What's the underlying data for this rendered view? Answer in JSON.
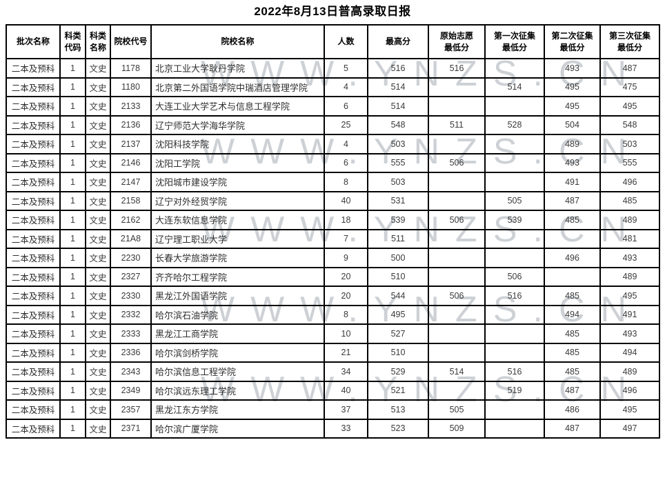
{
  "title": "2022年8月13日普高录取日报",
  "watermark": {
    "text": "WWW.YNZS.CN",
    "color": "#cdd1d5",
    "count": 6
  },
  "table": {
    "columns": [
      {
        "key": "batch",
        "label": "批次名称"
      },
      {
        "key": "subject-code",
        "label": "科类\n代码"
      },
      {
        "key": "subject-name",
        "label": "科类\n名称"
      },
      {
        "key": "inst-code",
        "label": "院校代号"
      },
      {
        "key": "inst-name",
        "label": "院校名称"
      },
      {
        "key": "count",
        "label": "人数"
      },
      {
        "key": "max-score",
        "label": "最高分"
      },
      {
        "key": "orig-min",
        "label": "原始志愿\n最低分"
      },
      {
        "key": "first-min",
        "label": "第一次征集\n最低分"
      },
      {
        "key": "second-min",
        "label": "第二次征集\n最低分"
      },
      {
        "key": "third-min",
        "label": "第三次征集\n最低分"
      }
    ],
    "rows": [
      [
        "二本及预科",
        "1",
        "文史",
        "1178",
        "北京工业大学耿丹学院",
        "5",
        "516",
        "516",
        "",
        "493",
        "487"
      ],
      [
        "二本及预科",
        "1",
        "文史",
        "1180",
        "北京第二外国语学院中瑞酒店管理学院",
        "4",
        "514",
        "",
        "514",
        "495",
        "475"
      ],
      [
        "二本及预科",
        "1",
        "文史",
        "2133",
        "大连工业大学艺术与信息工程学院",
        "6",
        "514",
        "",
        "",
        "495",
        "495"
      ],
      [
        "二本及预科",
        "1",
        "文史",
        "2136",
        "辽宁师范大学海华学院",
        "25",
        "548",
        "511",
        "528",
        "504",
        "548"
      ],
      [
        "二本及预科",
        "1",
        "文史",
        "2137",
        "沈阳科技学院",
        "4",
        "503",
        "",
        "",
        "489",
        "503"
      ],
      [
        "二本及预科",
        "1",
        "文史",
        "2146",
        "沈阳工学院",
        "6",
        "555",
        "506",
        "",
        "493",
        "555"
      ],
      [
        "二本及预科",
        "1",
        "文史",
        "2147",
        "沈阳城市建设学院",
        "8",
        "503",
        "",
        "",
        "491",
        "496"
      ],
      [
        "二本及预科",
        "1",
        "文史",
        "2158",
        "辽宁对外经贸学院",
        "40",
        "531",
        "",
        "505",
        "487",
        "485"
      ],
      [
        "二本及预科",
        "1",
        "文史",
        "2162",
        "大连东软信息学院",
        "18",
        "539",
        "506",
        "539",
        "485",
        "489"
      ],
      [
        "二本及预科",
        "1",
        "文史",
        "21A8",
        "辽宁理工职业大学",
        "7",
        "511",
        "",
        "",
        "",
        "481"
      ],
      [
        "二本及预科",
        "1",
        "文史",
        "2230",
        "长春大学旅游学院",
        "9",
        "500",
        "",
        "",
        "496",
        "493"
      ],
      [
        "二本及预科",
        "1",
        "文史",
        "2327",
        "齐齐哈尔工程学院",
        "20",
        "510",
        "",
        "506",
        "",
        "489"
      ],
      [
        "二本及预科",
        "1",
        "文史",
        "2330",
        "黑龙江外国语学院",
        "20",
        "544",
        "506",
        "516",
        "485",
        "495"
      ],
      [
        "二本及预科",
        "1",
        "文史",
        "2332",
        "哈尔滨石油学院",
        "8",
        "495",
        "",
        "",
        "494",
        "491"
      ],
      [
        "二本及预科",
        "1",
        "文史",
        "2333",
        "黑龙江工商学院",
        "10",
        "527",
        "",
        "",
        "485",
        "493"
      ],
      [
        "二本及预科",
        "1",
        "文史",
        "2336",
        "哈尔滨剑桥学院",
        "21",
        "510",
        "",
        "",
        "485",
        "494"
      ],
      [
        "二本及预科",
        "1",
        "文史",
        "2343",
        "哈尔滨信息工程学院",
        "34",
        "529",
        "514",
        "516",
        "485",
        "489"
      ],
      [
        "二本及预科",
        "1",
        "文史",
        "2349",
        "哈尔滨远东理工学院",
        "40",
        "521",
        "",
        "519",
        "487",
        "496"
      ],
      [
        "二本及预科",
        "1",
        "文史",
        "2357",
        "黑龙江东方学院",
        "37",
        "513",
        "505",
        "",
        "486",
        "495"
      ],
      [
        "二本及预科",
        "1",
        "文史",
        "2371",
        "哈尔滨广厦学院",
        "33",
        "523",
        "509",
        "",
        "487",
        "497"
      ]
    ]
  }
}
